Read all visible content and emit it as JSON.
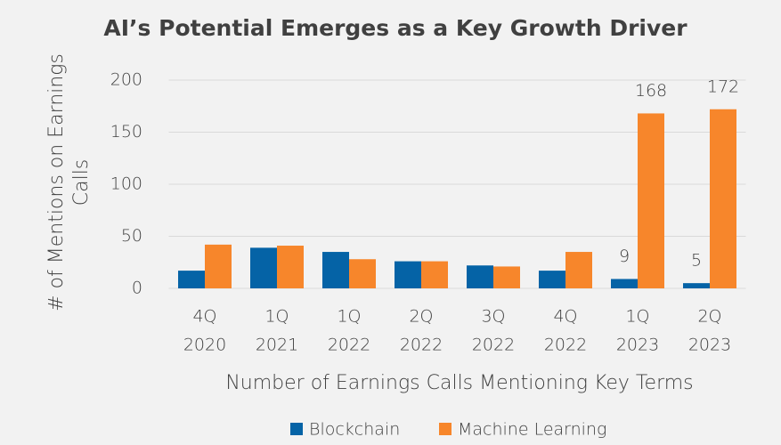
{
  "chart_data": {
    "type": "bar",
    "title": "AI’s Potential Emerges as a Key Growth Driver",
    "xlabel": "Number of Earnings Calls Mentioning Key Terms",
    "ylabel": [
      "# of Mentions on Earnings",
      "Calls"
    ],
    "categories": [
      [
        "4Q",
        "2020"
      ],
      [
        "1Q",
        "2021"
      ],
      [
        "1Q",
        "2022"
      ],
      [
        "2Q",
        "2022"
      ],
      [
        "3Q",
        "2022"
      ],
      [
        "4Q",
        "2022"
      ],
      [
        "1Q",
        "2023"
      ],
      [
        "2Q",
        "2023"
      ]
    ],
    "series": [
      {
        "name": "Blockchain",
        "color": "#0563a6",
        "values": [
          17,
          39,
          35,
          26,
          22,
          17,
          9,
          5
        ],
        "value_labels": [
          null,
          null,
          null,
          null,
          null,
          null,
          "9",
          "5"
        ]
      },
      {
        "name": "Machine Learning",
        "color": "#f7862b",
        "values": [
          42,
          41,
          28,
          26,
          21,
          35,
          168,
          172
        ],
        "value_labels": [
          null,
          null,
          null,
          null,
          null,
          null,
          "168",
          "172"
        ]
      }
    ],
    "ylim": [
      0,
      200
    ],
    "yticks": [
      0,
      50,
      100,
      150,
      200
    ],
    "grid": true,
    "legend": "bottom"
  }
}
